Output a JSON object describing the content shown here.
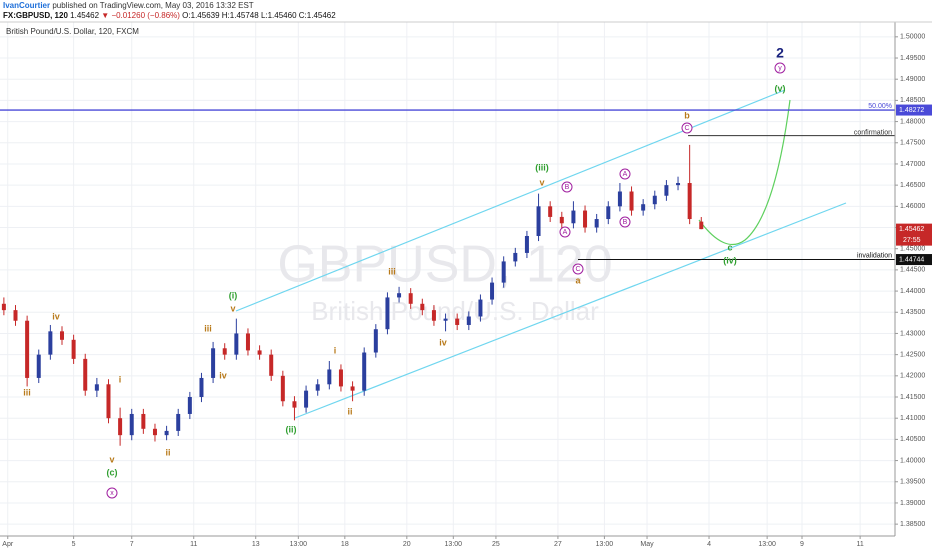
{
  "header": {
    "author": "IvanCourtier",
    "published": "published on TradingView.com, May 03, 2016 13:32 EST",
    "symbol": "FX:GBPUSD, 120",
    "last": "1.45462",
    "change": "▼ −0.01260 (−0.86%)",
    "open": "O:1.45639",
    "high": "H:1.45748",
    "low": "L:1.45460",
    "close": "C:1.45462"
  },
  "chart_data": {
    "type": "candlestick",
    "title": "British Pound/U.S. Dollar, 120, FXCM",
    "watermark": "GBPUSD, 120",
    "watermark_subtitle": "British Pound/U.S. Dollar",
    "up_color": "#2b3f9e",
    "down_color": "#c62828",
    "grid": true,
    "x": [
      0,
      3,
      6,
      9,
      12,
      15,
      18,
      21,
      24,
      27,
      30,
      33,
      36,
      39,
      42,
      45,
      48,
      51,
      54,
      57,
      60,
      63,
      66,
      69,
      72,
      75,
      78,
      81,
      84,
      87,
      90,
      93,
      96,
      99,
      102,
      105,
      108,
      111,
      114,
      117,
      120,
      123,
      126,
      129,
      132,
      135,
      138,
      141,
      144,
      147,
      150,
      153,
      156,
      159,
      162,
      165,
      168,
      171,
      174,
      177,
      180
    ],
    "open": [
      1.437,
      1.4355,
      1.433,
      1.4195,
      1.425,
      1.4305,
      1.4285,
      1.424,
      1.4165,
      1.418,
      1.41,
      1.406,
      1.411,
      1.4075,
      1.406,
      1.407,
      1.411,
      1.415,
      1.4195,
      1.4265,
      1.425,
      1.43,
      1.426,
      1.425,
      1.42,
      1.414,
      1.4125,
      1.4165,
      1.418,
      1.4215,
      1.4175,
      1.4165,
      1.4255,
      1.431,
      1.4385,
      1.4395,
      1.437,
      1.4355,
      1.433,
      1.4335,
      1.432,
      1.434,
      1.438,
      1.442,
      1.447,
      1.449,
      1.453,
      1.46,
      1.4575,
      1.456,
      1.459,
      1.455,
      1.457,
      1.46,
      1.4635,
      1.459,
      1.4605,
      1.4625,
      1.465,
      1.4655,
      1.45639
    ],
    "high": [
      1.4385,
      1.4367,
      1.4342,
      1.4262,
      1.432,
      1.4317,
      1.4297,
      1.4252,
      1.4195,
      1.4192,
      1.4125,
      1.4122,
      1.4122,
      1.4087,
      1.4082,
      1.4122,
      1.4162,
      1.4207,
      1.428,
      1.4277,
      1.4335,
      1.4312,
      1.4272,
      1.4262,
      1.4212,
      1.4152,
      1.4177,
      1.4192,
      1.4235,
      1.4227,
      1.4187,
      1.4267,
      1.4322,
      1.4397,
      1.441,
      1.4407,
      1.4382,
      1.4367,
      1.4347,
      1.4347,
      1.4352,
      1.4392,
      1.4432,
      1.4482,
      1.4502,
      1.4542,
      1.463,
      1.4612,
      1.4587,
      1.4612,
      1.4602,
      1.4582,
      1.4612,
      1.4655,
      1.4647,
      1.4617,
      1.4637,
      1.4662,
      1.467,
      1.4745,
      1.45748
    ],
    "low": [
      1.4343,
      1.4318,
      1.4175,
      1.4183,
      1.4238,
      1.4273,
      1.4228,
      1.4153,
      1.415,
      1.4088,
      1.4035,
      1.4048,
      1.4063,
      1.4045,
      1.4048,
      1.4058,
      1.4098,
      1.4138,
      1.4183,
      1.4238,
      1.4238,
      1.4248,
      1.4238,
      1.4188,
      1.4128,
      1.4095,
      1.4113,
      1.4153,
      1.4168,
      1.4163,
      1.414,
      1.4153,
      1.4243,
      1.4298,
      1.4373,
      1.4358,
      1.4343,
      1.4318,
      1.4305,
      1.4308,
      1.4308,
      1.4328,
      1.4368,
      1.4408,
      1.4458,
      1.4478,
      1.4518,
      1.4563,
      1.4545,
      1.4548,
      1.4538,
      1.4538,
      1.4558,
      1.4588,
      1.4578,
      1.4578,
      1.4593,
      1.4613,
      1.4638,
      1.4558,
      1.4546
    ],
    "close": [
      1.4355,
      1.433,
      1.4195,
      1.425,
      1.4305,
      1.4285,
      1.424,
      1.4165,
      1.418,
      1.41,
      1.406,
      1.411,
      1.4075,
      1.406,
      1.407,
      1.411,
      1.415,
      1.4195,
      1.4265,
      1.425,
      1.43,
      1.426,
      1.425,
      1.42,
      1.414,
      1.4125,
      1.4165,
      1.418,
      1.4215,
      1.4175,
      1.4165,
      1.4255,
      1.431,
      1.4385,
      1.4395,
      1.437,
      1.4355,
      1.433,
      1.4335,
      1.432,
      1.434,
      1.438,
      1.442,
      1.447,
      1.449,
      1.453,
      1.46,
      1.4575,
      1.456,
      1.459,
      1.455,
      1.457,
      1.46,
      1.4635,
      1.459,
      1.4605,
      1.4625,
      1.465,
      1.4655,
      1.457,
      1.45462
    ],
    "xlim": [
      -1,
      230
    ],
    "xticks": [
      {
        "value": 1,
        "label": "Apr"
      },
      {
        "value": 18,
        "label": "5"
      },
      {
        "value": 33,
        "label": "7"
      },
      {
        "value": 49,
        "label": "11"
      },
      {
        "value": 65,
        "label": "13"
      },
      {
        "value": 76,
        "label": "13:00"
      },
      {
        "value": 88,
        "label": "18"
      },
      {
        "value": 104,
        "label": "20"
      },
      {
        "value": 116,
        "label": "13:00"
      },
      {
        "value": 127,
        "label": "25"
      },
      {
        "value": 143,
        "label": "27"
      },
      {
        "value": 155,
        "label": "13:00"
      },
      {
        "value": 166,
        "label": "May"
      },
      {
        "value": 182,
        "label": "4"
      },
      {
        "value": 197,
        "label": "13:00"
      },
      {
        "value": 206,
        "label": "9"
      },
      {
        "value": 221,
        "label": "11"
      }
    ],
    "ylim": [
      1.3822,
      1.5035
    ],
    "yticks": [
      {
        "value": 1.385,
        "label": "1.38500"
      },
      {
        "value": 1.39,
        "label": "1.39000"
      },
      {
        "value": 1.395,
        "label": "1.39500"
      },
      {
        "value": 1.4,
        "label": "1.40000"
      },
      {
        "value": 1.405,
        "label": "1.40500"
      },
      {
        "value": 1.41,
        "label": "1.41000"
      },
      {
        "value": 1.415,
        "label": "1.41500"
      },
      {
        "value": 1.42,
        "label": "1.42000"
      },
      {
        "value": 1.425,
        "label": "1.42500"
      },
      {
        "value": 1.43,
        "label": "1.43000"
      },
      {
        "value": 1.435,
        "label": "1.43500"
      },
      {
        "value": 1.44,
        "label": "1.44000"
      },
      {
        "value": 1.445,
        "label": "1.44500"
      },
      {
        "value": 1.45,
        "label": "1.45000"
      },
      {
        "value": 1.455,
        "label": "1.45500"
      },
      {
        "value": 1.46,
        "label": "1.46000"
      },
      {
        "value": 1.465,
        "label": "1.46500"
      },
      {
        "value": 1.47,
        "label": "1.47000"
      },
      {
        "value": 1.475,
        "label": "1.47500"
      },
      {
        "value": 1.48,
        "label": "1.48000"
      },
      {
        "value": 1.485,
        "label": "1.48500"
      },
      {
        "value": 1.49,
        "label": "1.49000"
      },
      {
        "value": 1.495,
        "label": "1.49500"
      },
      {
        "value": 1.5,
        "label": "1.50000"
      }
    ],
    "levels": [
      {
        "name": "50.00%",
        "value": 1.48272,
        "color": "#4a4ad8",
        "axis_label": true
      },
      {
        "name": "confirmation",
        "value": 1.4767,
        "color": "#333333",
        "axis_label": false
      },
      {
        "name": "invalidation",
        "value": 1.44744,
        "color": "#111111",
        "axis_label": true
      }
    ],
    "last_price": 1.45462,
    "countdown": "27:55",
    "annotations": [
      {
        "text": "iii",
        "color": "#b87a1a",
        "circled": false
      },
      {
        "text": "iv",
        "color": "#b87a1a",
        "circled": false
      },
      {
        "text": "i",
        "color": "#b87a1a",
        "circled": false
      },
      {
        "text": "v",
        "color": "#b87a1a",
        "circled": false
      },
      {
        "text": "(c)",
        "color": "#2e9e2e",
        "circled": false
      },
      {
        "text": "x",
        "color": "#a020a0",
        "circled": true
      },
      {
        "text": "ii",
        "color": "#b87a1a",
        "circled": false
      },
      {
        "text": "iii",
        "color": "#b87a1a",
        "circled": false
      },
      {
        "text": "iv",
        "color": "#b87a1a",
        "circled": false
      },
      {
        "text": "(i)",
        "color": "#2e9e2e",
        "circled": false
      },
      {
        "text": "v",
        "color": "#b87a1a",
        "circled": false
      },
      {
        "text": "(ii)",
        "color": "#2e9e2e",
        "circled": false
      },
      {
        "text": "i",
        "color": "#b87a1a",
        "circled": false
      },
      {
        "text": "ii",
        "color": "#b87a1a",
        "circled": false
      },
      {
        "text": "iii",
        "color": "#b87a1a",
        "circled": false
      },
      {
        "text": "iv",
        "color": "#b87a1a",
        "circled": false
      },
      {
        "text": "(iii)",
        "color": "#2e9e2e",
        "circled": false
      },
      {
        "text": "v",
        "color": "#b87a1a",
        "circled": false
      },
      {
        "text": "B",
        "color": "#a020a0",
        "circled": true
      },
      {
        "text": "A",
        "color": "#a020a0",
        "circled": true
      },
      {
        "text": "C",
        "color": "#a020a0",
        "circled": true
      },
      {
        "text": "a",
        "color": "#b87a1a",
        "circled": false
      },
      {
        "text": "A",
        "color": "#a020a0",
        "circled": true
      },
      {
        "text": "B",
        "color": "#a020a0",
        "circled": true
      },
      {
        "text": "b",
        "color": "#b87a1a",
        "circled": false
      },
      {
        "text": "C",
        "color": "#a020a0",
        "circled": true
      },
      {
        "text": "c",
        "color": "#2e9e2e",
        "circled": false
      },
      {
        "text": "(iv)",
        "color": "#2e9e2e",
        "circled": false
      },
      {
        "text": "(v)",
        "color": "#2e9e2e",
        "circled": false
      },
      {
        "text": "y",
        "color": "#a020a0",
        "circled": true
      },
      {
        "text": "2",
        "color": "#1a237e",
        "circled": false
      }
    ]
  }
}
